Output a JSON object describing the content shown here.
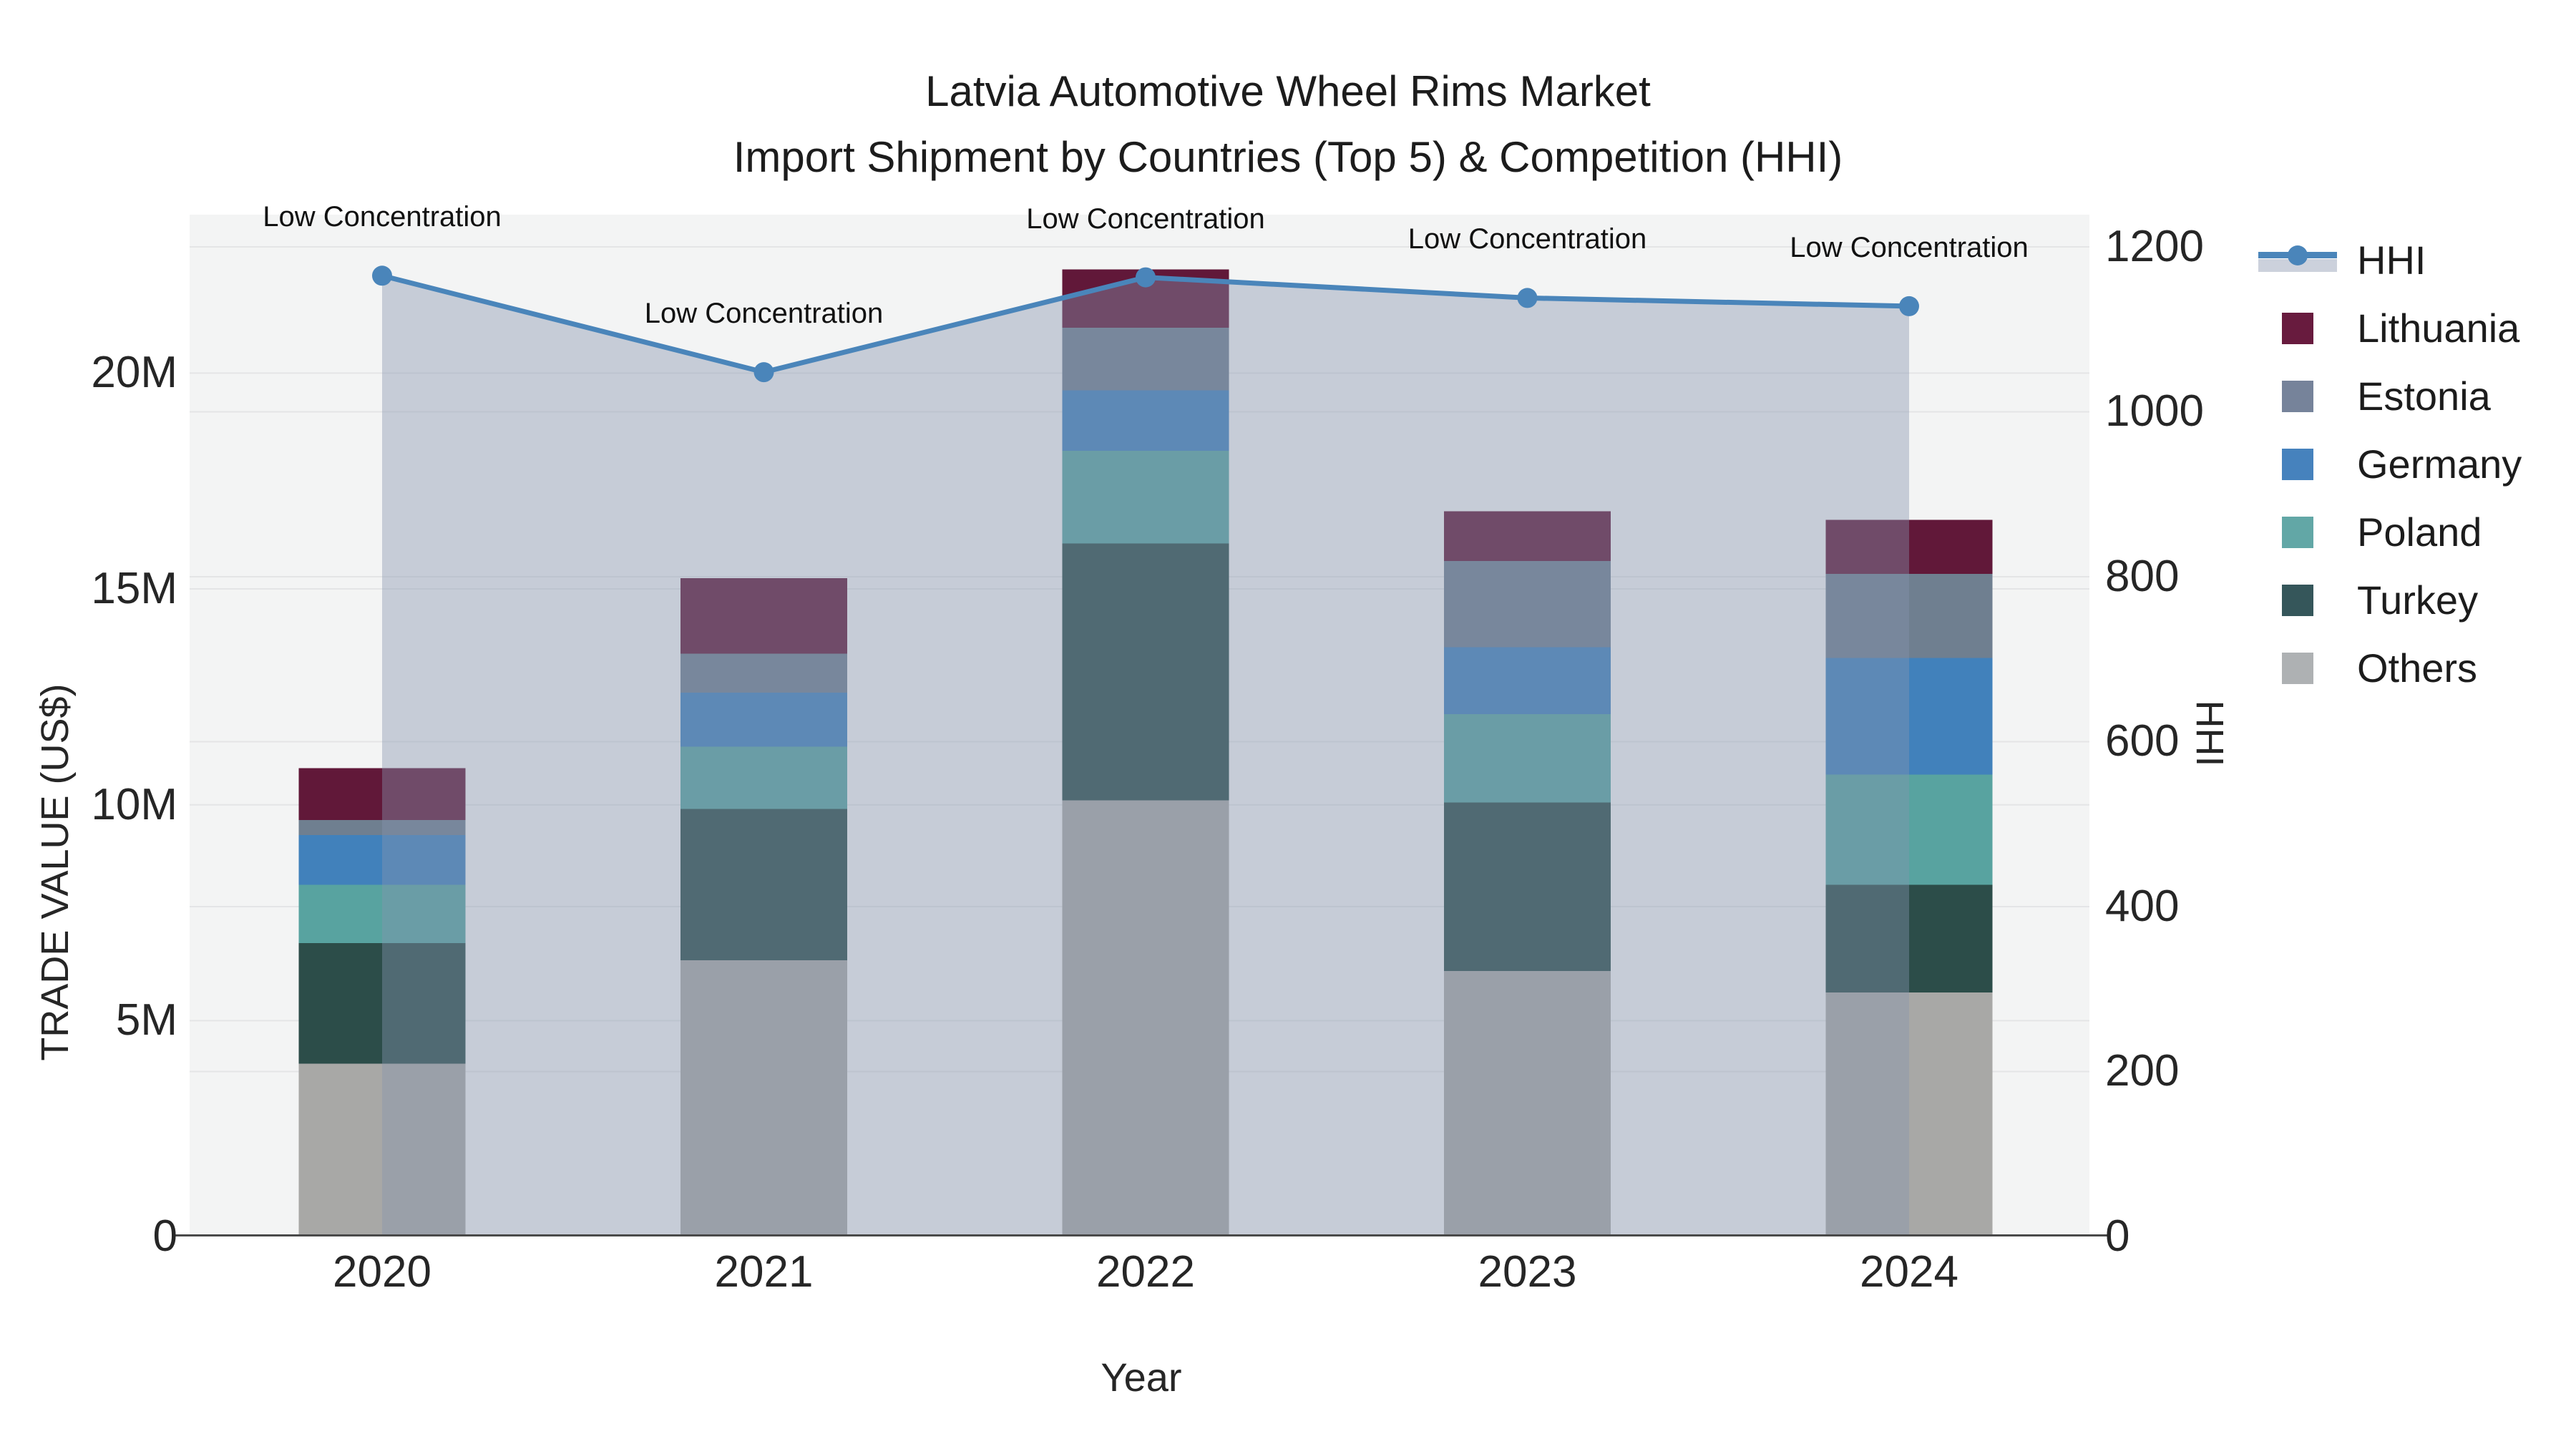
{
  "title": {
    "line1": "Latvia Automotive Wheel Rims Market",
    "line2": "Import Shipment by Countries (Top 5) & Competition (HHI)"
  },
  "chart_data": {
    "type": "bar",
    "stacked": true,
    "categories": [
      "2020",
      "2021",
      "2022",
      "2023",
      "2024"
    ],
    "series": [
      {
        "name": "Others",
        "color": "#a8a8a6",
        "values": [
          4.0,
          6.4,
          10.1,
          6.15,
          5.65
        ]
      },
      {
        "name": "Turkey",
        "color": "#2c4d49",
        "values": [
          2.8,
          3.5,
          5.95,
          3.9,
          2.5
        ]
      },
      {
        "name": "Poland",
        "color": "#58a3a0",
        "values": [
          1.35,
          1.45,
          2.15,
          2.05,
          2.55
        ]
      },
      {
        "name": "Germany",
        "color": "#4181bb",
        "values": [
          1.15,
          1.25,
          1.4,
          1.55,
          2.7
        ]
      },
      {
        "name": "Estonia",
        "color": "#6f7f90",
        "values": [
          0.35,
          0.9,
          1.45,
          2.0,
          1.95
        ]
      },
      {
        "name": "Lithuania",
        "color": "#611839",
        "values": [
          1.2,
          1.75,
          1.35,
          1.15,
          1.25
        ]
      }
    ],
    "bar_totals": [
      10.85,
      15.25,
      22.4,
      16.8,
      16.6
    ],
    "values_unit": "M US$",
    "line_series": {
      "name": "HHI",
      "axis": "right",
      "color": "#4a85ba",
      "fill_color": "rgba(134,147,176,0.41)",
      "values": [
        1165,
        1048,
        1163,
        1138,
        1128
      ]
    },
    "annotations": [
      {
        "x": "2020",
        "text": "Low Concentration"
      },
      {
        "x": "2021",
        "text": "Low Concentration"
      },
      {
        "x": "2022",
        "text": "Low Concentration"
      },
      {
        "x": "2023",
        "text": "Low Concentration"
      },
      {
        "x": "2024",
        "text": "Low Concentration"
      }
    ],
    "axes": {
      "left": {
        "label": "TRADE VALUE (US$)",
        "max": 23.67,
        "ticks": [
          {
            "v": 0,
            "t": "0"
          },
          {
            "v": 5,
            "t": "5M"
          },
          {
            "v": 10,
            "t": "10M"
          },
          {
            "v": 15,
            "t": "15M"
          },
          {
            "v": 20,
            "t": "20M"
          }
        ]
      },
      "right": {
        "label": "HHI",
        "max": 1239,
        "ticks": [
          {
            "v": 0,
            "t": "0"
          },
          {
            "v": 200,
            "t": "200"
          },
          {
            "v": 400,
            "t": "400"
          },
          {
            "v": 600,
            "t": "600"
          },
          {
            "v": 800,
            "t": "800"
          },
          {
            "v": 1000,
            "t": "1000"
          },
          {
            "v": 1200,
            "t": "1200"
          }
        ]
      },
      "x": {
        "label": "Year"
      }
    },
    "legend_position": "right",
    "grid": true
  },
  "legend": {
    "items": [
      {
        "label": "HHI",
        "type": "line",
        "color": "#4a85ba",
        "band": "#ccd1dc"
      },
      {
        "label": "Lithuania",
        "type": "swatch",
        "color": "#681b3e"
      },
      {
        "label": "Estonia",
        "type": "swatch",
        "color": "#76839a"
      },
      {
        "label": "Germany",
        "type": "swatch",
        "color": "#4682bd"
      },
      {
        "label": "Poland",
        "type": "swatch",
        "color": "#62a7a6"
      },
      {
        "label": "Turkey",
        "type": "swatch",
        "color": "#35565a"
      },
      {
        "label": "Others",
        "type": "swatch",
        "color": "#aeb1b3"
      }
    ]
  },
  "colors": {
    "plot_bg": "#f3f4f4",
    "grid_line": "#e4e5e6",
    "axis_line": "#4a4a4a",
    "text": "#1f1f1f"
  }
}
